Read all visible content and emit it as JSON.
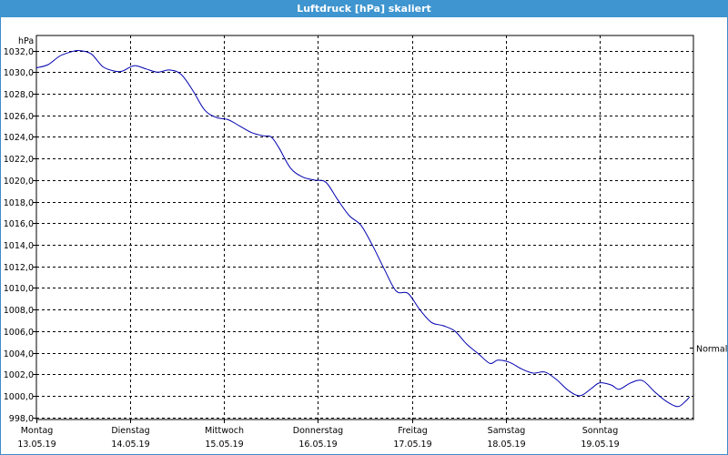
{
  "window": {
    "title": "Luftdruck [hPa] skaliert"
  },
  "chart_data": {
    "type": "line",
    "title": "Luftdruck [hPa] skaliert",
    "ylabel": "hPa",
    "ylim": [
      997.8,
      1033.4
    ],
    "y_ticks": [
      "1032,0",
      "1030,0",
      "1028,0",
      "1026,0",
      "1024,0",
      "1022,0",
      "1020,0",
      "1018,0",
      "1016,0",
      "1014,0",
      "1012,0",
      "1010,0",
      "1008,0",
      "1006,0",
      "1004,0",
      "1002,0",
      "1000,0",
      "998,0"
    ],
    "y_tick_values": [
      1032,
      1030,
      1028,
      1026,
      1024,
      1022,
      1020,
      1018,
      1016,
      1014,
      1012,
      1010,
      1008,
      1006,
      1004,
      1002,
      1000,
      998
    ],
    "x_range_days": [
      0,
      7
    ],
    "x_ticks": [
      {
        "day": "Montag",
        "date": "13.05.19"
      },
      {
        "day": "Dienstag",
        "date": "14.05.19"
      },
      {
        "day": "Mittwoch",
        "date": "15.05.19"
      },
      {
        "day": "Donnerstag",
        "date": "16.05.19"
      },
      {
        "day": "Freitag",
        "date": "17.05.19"
      },
      {
        "day": "Samstag",
        "date": "18.05.19"
      },
      {
        "day": "Sonntag",
        "date": "19.05.19"
      }
    ],
    "normal_label": "Normal",
    "normal_value": 1004.5,
    "grid": true,
    "line_color": "#0000b0",
    "series": [
      {
        "values": [
          {
            "x": "13.05.19 00:00",
            "y": 1030.4
          },
          {
            "x": "13.05.19 03:00",
            "y": 1030.7
          },
          {
            "x": "13.05.19 06:00",
            "y": 1031.5
          },
          {
            "x": "13.05.19 09:00",
            "y": 1031.9
          },
          {
            "x": "13.05.19 11:00",
            "y": 1032.0
          },
          {
            "x": "13.05.19 14:00",
            "y": 1031.7
          },
          {
            "x": "13.05.19 17:00",
            "y": 1030.5
          },
          {
            "x": "13.05.19 20:00",
            "y": 1030.1
          },
          {
            "x": "13.05.19 22:00",
            "y": 1030.1
          },
          {
            "x": "14.05.19 01:00",
            "y": 1030.6
          },
          {
            "x": "14.05.19 04:00",
            "y": 1030.3
          },
          {
            "x": "14.05.19 07:00",
            "y": 1030.0
          },
          {
            "x": "14.05.19 10:00",
            "y": 1030.2
          },
          {
            "x": "14.05.19 13:00",
            "y": 1029.8
          },
          {
            "x": "14.05.19 16:00",
            "y": 1028.3
          },
          {
            "x": "14.05.19 19:00",
            "y": 1026.5
          },
          {
            "x": "14.05.19 22:00",
            "y": 1025.8
          },
          {
            "x": "15.05.19 01:00",
            "y": 1025.6
          },
          {
            "x": "15.05.19 04:00",
            "y": 1025.0
          },
          {
            "x": "15.05.19 07:00",
            "y": 1024.4
          },
          {
            "x": "15.05.19 10:00",
            "y": 1024.1
          },
          {
            "x": "15.05.19 12:00",
            "y": 1024.0
          },
          {
            "x": "15.05.19 14:00",
            "y": 1023.0
          },
          {
            "x": "15.05.19 17:00",
            "y": 1021.1
          },
          {
            "x": "15.05.19 20:00",
            "y": 1020.3
          },
          {
            "x": "15.05.19 23:00",
            "y": 1020.0
          },
          {
            "x": "16.05.19 02:00",
            "y": 1019.8
          },
          {
            "x": "16.05.19 05:00",
            "y": 1018.2
          },
          {
            "x": "16.05.19 08:00",
            "y": 1016.7
          },
          {
            "x": "16.05.19 11:00",
            "y": 1015.8
          },
          {
            "x": "16.05.19 14:00",
            "y": 1013.9
          },
          {
            "x": "16.05.19 17:00",
            "y": 1011.7
          },
          {
            "x": "16.05.19 20:00",
            "y": 1009.7
          },
          {
            "x": "16.05.19 23:00",
            "y": 1009.5
          },
          {
            "x": "17.05.19 02:00",
            "y": 1008.0
          },
          {
            "x": "17.05.19 05:00",
            "y": 1006.8
          },
          {
            "x": "17.05.19 08:00",
            "y": 1006.5
          },
          {
            "x": "17.05.19 11:00",
            "y": 1006.0
          },
          {
            "x": "17.05.19 14:00",
            "y": 1004.8
          },
          {
            "x": "17.05.19 17:00",
            "y": 1003.9
          },
          {
            "x": "17.05.19 20:00",
            "y": 1003.0
          },
          {
            "x": "17.05.19 22:00",
            "y": 1003.3
          },
          {
            "x": "18.05.19 01:00",
            "y": 1003.1
          },
          {
            "x": "18.05.19 04:00",
            "y": 1002.5
          },
          {
            "x": "18.05.19 07:00",
            "y": 1002.1
          },
          {
            "x": "18.05.19 10:00",
            "y": 1002.2
          },
          {
            "x": "18.05.19 13:00",
            "y": 1001.5
          },
          {
            "x": "18.05.19 16:00",
            "y": 1000.5
          },
          {
            "x": "18.05.19 19:00",
            "y": 1000.0
          },
          {
            "x": "18.05.19 22:00",
            "y": 1000.7
          },
          {
            "x": "19.05.19 00:00",
            "y": 1001.2
          },
          {
            "x": "19.05.19 03:00",
            "y": 1001.0
          },
          {
            "x": "19.05.19 05:00",
            "y": 1000.6
          },
          {
            "x": "19.05.19 08:00",
            "y": 1001.2
          },
          {
            "x": "19.05.19 11:00",
            "y": 1001.4
          },
          {
            "x": "19.05.19 14:00",
            "y": 1000.4
          },
          {
            "x": "19.05.19 17:00",
            "y": 999.5
          },
          {
            "x": "19.05.19 20:00",
            "y": 999.0
          },
          {
            "x": "19.05.19 22:00",
            "y": 999.5
          },
          {
            "x": "19.05.19 23:00",
            "y": 999.9
          }
        ]
      }
    ]
  }
}
